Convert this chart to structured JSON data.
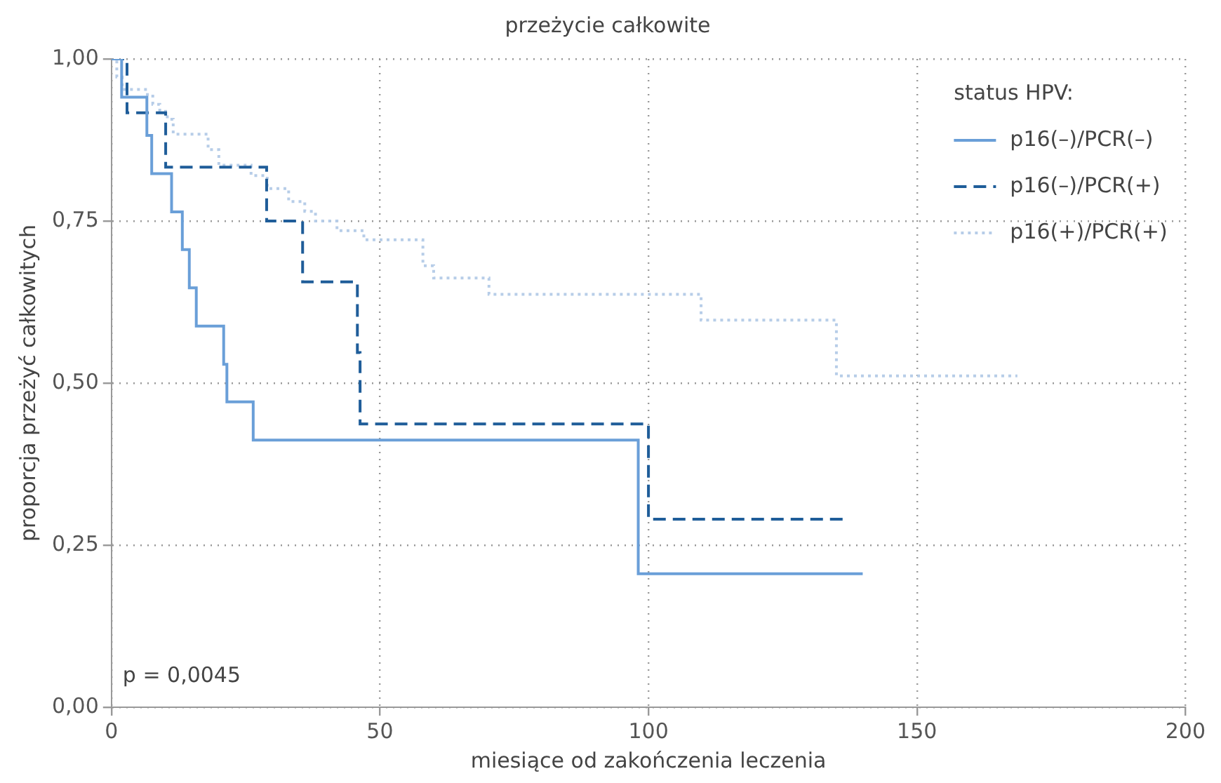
{
  "chart_data": {
    "type": "step",
    "title": "przeżycie całkowite",
    "xlabel": "miesiące od zakończenia leczenia",
    "ylabel": "proporcja przeżyć całkowitych",
    "legend_title": "status HPV:",
    "series": [
      {
        "name": "p16(–)/PCR(–)",
        "color": "#6a9fd8",
        "line_style": "solid",
        "x": [
          0,
          1.9,
          6.6,
          7.5,
          11.2,
          13.2,
          14.5,
          15.8,
          20.9,
          21.5,
          26.4,
          98.1,
          139.9
        ],
        "values": [
          1.0,
          0.941,
          0.882,
          0.823,
          0.764,
          0.706,
          0.647,
          0.588,
          0.529,
          0.471,
          0.412,
          0.206,
          0.206
        ]
      },
      {
        "name": "p16(–)/PCR(+)",
        "color": "#1f5d99",
        "line_style": "dashed",
        "x": [
          0,
          2.9,
          10.1,
          28.9,
          35.6,
          45.8,
          46.3,
          100.0,
          136.3
        ],
        "values": [
          1.0,
          0.917,
          0.833,
          0.75,
          0.656,
          0.547,
          0.437,
          0.29,
          0.29
        ]
      },
      {
        "name": "p16(+)/PCR(+)",
        "color": "#b7cde8",
        "line_style": "dotted",
        "x": [
          0,
          1,
          2,
          6.7,
          7.7,
          9,
          10.4,
          11.5,
          18,
          20,
          26,
          29,
          33,
          36,
          38,
          42,
          47,
          58,
          60,
          70.3,
          109.8,
          135,
          168.7
        ],
        "values": [
          1.0,
          0.972,
          0.953,
          0.945,
          0.93,
          0.919,
          0.907,
          0.884,
          0.86,
          0.836,
          0.82,
          0.8,
          0.78,
          0.765,
          0.75,
          0.735,
          0.721,
          0.681,
          0.662,
          0.637,
          0.597,
          0.511,
          0.511
        ]
      }
    ],
    "xlim": [
      0,
      200
    ],
    "xticks": [
      0,
      50,
      100,
      150,
      200
    ],
    "ylim": [
      0,
      1
    ],
    "yticks": [
      {
        "value": 0,
        "label": "0,00"
      },
      {
        "value": 0.25,
        "label": "0,25"
      },
      {
        "value": 0.5,
        "label": "0,50"
      },
      {
        "value": 0.75,
        "label": "0,75"
      },
      {
        "value": 1,
        "label": "1,00"
      }
    ],
    "grid": true,
    "legend": "top right",
    "annotations": [
      "p = 0,0045"
    ]
  }
}
